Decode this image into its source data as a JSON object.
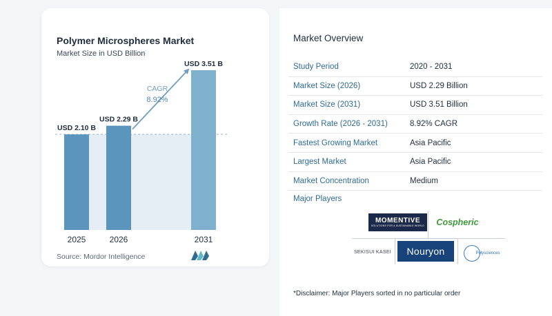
{
  "chart": {
    "title": "Polymer Microspheres Market",
    "subtitle": "Market Size in USD Billion",
    "cagr_label": "CAGR",
    "cagr_value": "8.92%",
    "source": "Source:  Mordor Intelligence"
  },
  "chart_data": {
    "type": "bar",
    "categories": [
      "2025",
      "2026",
      "2031"
    ],
    "values": [
      2.1,
      2.29,
      3.51
    ],
    "value_labels": [
      "USD 2.10 B",
      "USD 2.29 B",
      "USD 3.51 B"
    ],
    "title": "Polymer Microspheres Market",
    "subtitle": "Market Size in USD Billion",
    "ylim": [
      0,
      3.6
    ],
    "grid": false,
    "colors": {
      "bar": "#5b94bd",
      "bar_light": "#7fb1cf",
      "shade": "#e6eef5",
      "reference_line": "#9ab2c6",
      "arrow": "#6f9ec2"
    }
  },
  "overview": {
    "title": "Market Overview",
    "rows": [
      {
        "label": "Study Period",
        "value": "2020 - 2031"
      },
      {
        "label": "Market Size (2026)",
        "value": "USD 2.29 Billion"
      },
      {
        "label": "Market Size (2031)",
        "value": "USD 3.51 Billion"
      },
      {
        "label": "Growth Rate (2026 - 2031)",
        "value": "8.92% CAGR"
      },
      {
        "label": "Fastest Growing Market",
        "value": "Asia Pacific"
      },
      {
        "label": "Largest Market",
        "value": "Asia Pacific"
      },
      {
        "label": "Market Concentration",
        "value": "Medium"
      }
    ]
  },
  "players": {
    "title": "Major Players",
    "momentive": "MOMENTIVE",
    "momentive_tagline": "SOLUTIONS FOR A SUSTAINABLE WORLD",
    "cospheric": "Cospheric",
    "sekisui": "SEKISUI KASEI",
    "nouryon": "Nouryon",
    "polysciences": "Polysciences"
  },
  "disclaimer": "*Disclaimer: Major Players sorted in no particular order"
}
